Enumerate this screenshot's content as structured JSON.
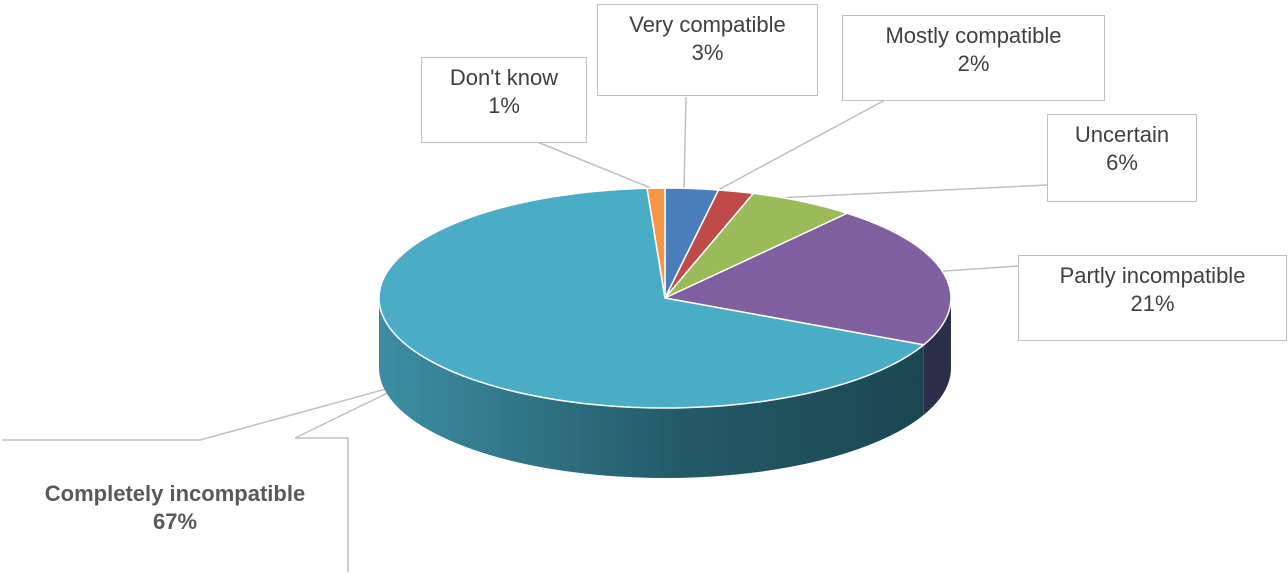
{
  "chart_data": {
    "type": "pie",
    "title": "",
    "slices": [
      {
        "label": "Very compatible",
        "value": 3,
        "pct_text": "3%",
        "color": "#4a7ebb"
      },
      {
        "label": "Mostly compatible",
        "value": 2,
        "pct_text": "2%",
        "color": "#be4b48"
      },
      {
        "label": "Uncertain",
        "value": 6,
        "pct_text": "6%",
        "color": "#9bbb59"
      },
      {
        "label": "Partly incompatible",
        "value": 21,
        "pct_text": "21%",
        "color": "#7f5f9f"
      },
      {
        "label": "Completely incompatible",
        "value": 67,
        "pct_text": "67%",
        "color": "#4bacc6",
        "emphasis": true
      },
      {
        "label": "Don't know",
        "value": 1,
        "pct_text": "1%",
        "color": "#f79646"
      }
    ]
  }
}
